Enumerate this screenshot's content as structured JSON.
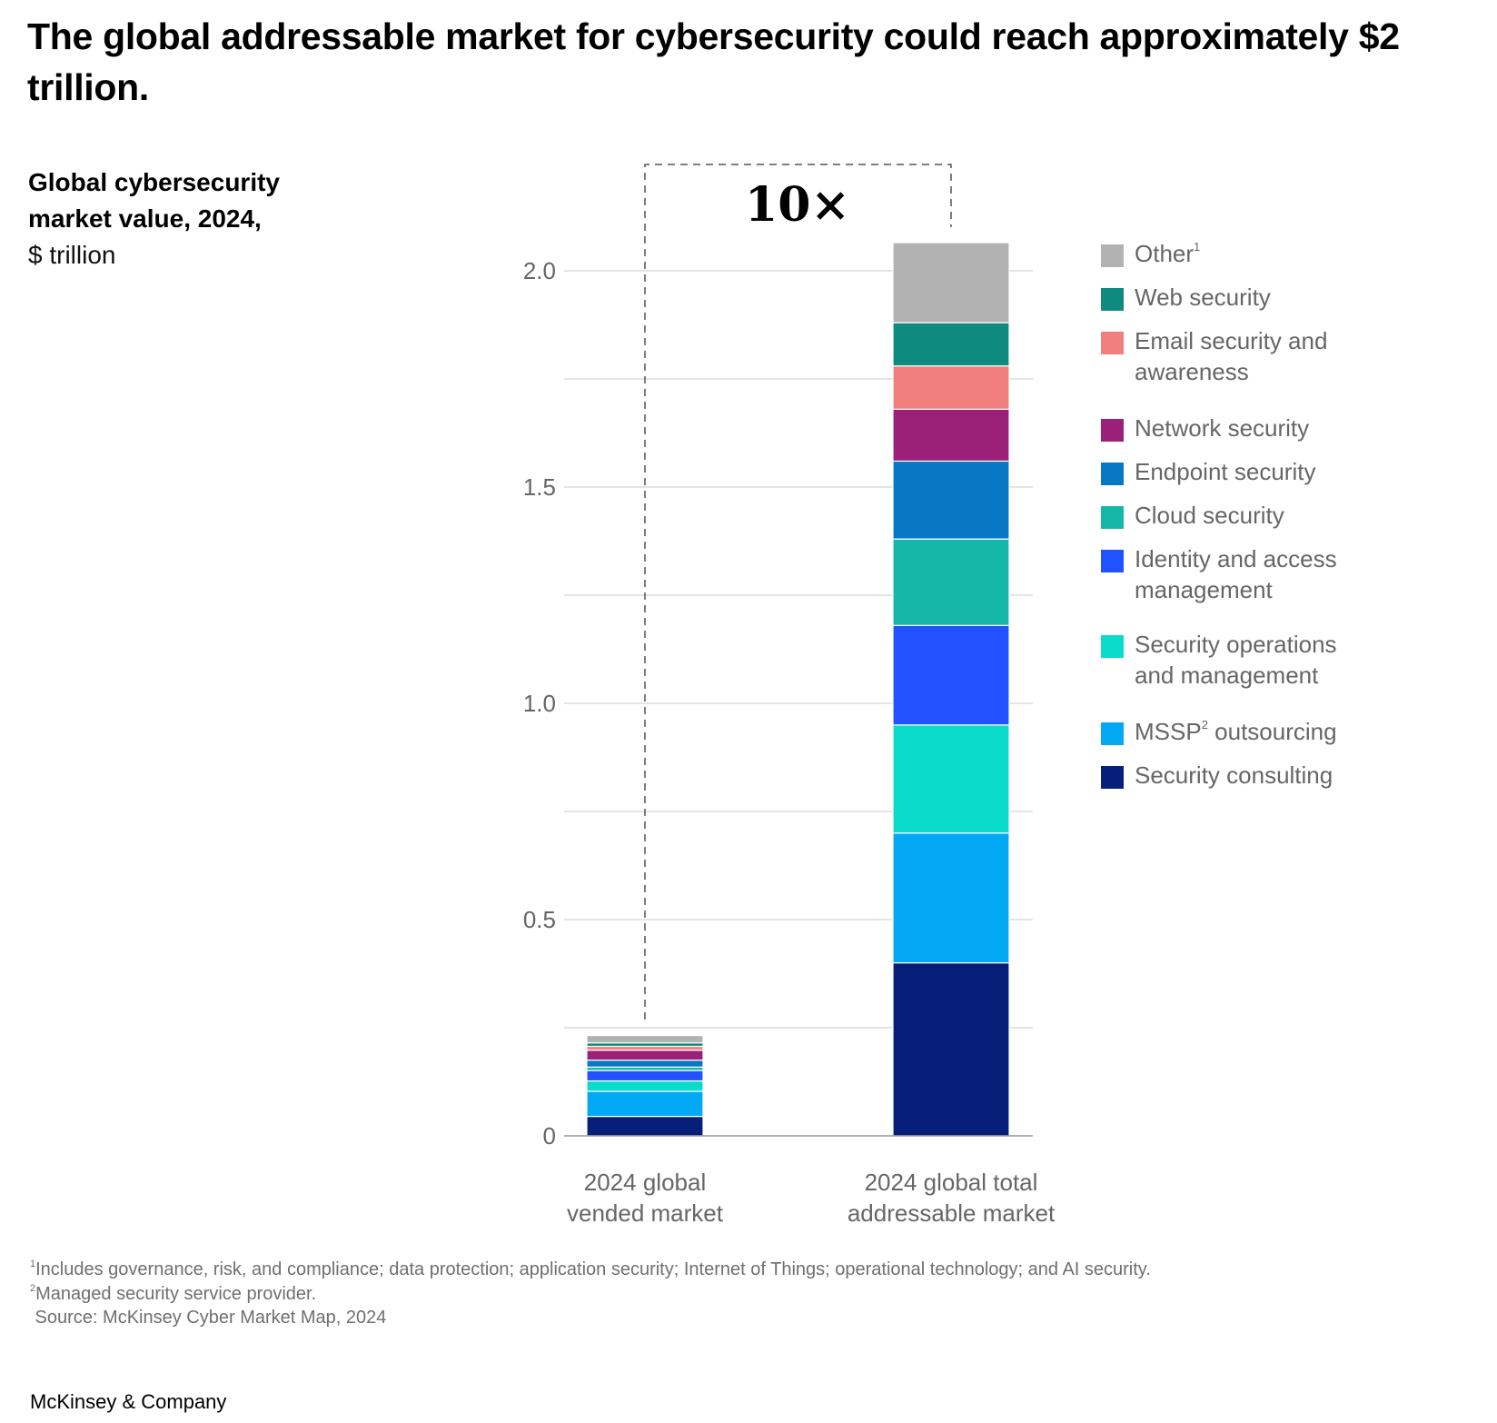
{
  "title": "The global addressable market for cybersecurity could reach approximately $2 trillion.",
  "subtitle": {
    "line1": "Global cybersecurity",
    "line2": "market value, 2024,",
    "unit": "$ trillion"
  },
  "annotation": "10×",
  "legend": [
    {
      "label": "Other",
      "sup": "1",
      "color": "#b2b2b2"
    },
    {
      "label": "Web security",
      "sup": "",
      "color": "#0f8a7e"
    },
    {
      "label": "Email security and awareness",
      "sup": "",
      "color": "#f07f7d"
    },
    {
      "label": "Network security",
      "sup": "",
      "color": "#9b2178"
    },
    {
      "label": "Endpoint security",
      "sup": "",
      "color": "#0878c4"
    },
    {
      "label": "Cloud security",
      "sup": "",
      "color": "#15b8a8"
    },
    {
      "label": "Identity and access management",
      "sup": "",
      "color": "#2251ff"
    },
    {
      "label": "Security operations and management",
      "sup": "",
      "color": "#0adbcb"
    },
    {
      "label": "MSSP",
      "sup": "2",
      "label_suffix": " outsourcing",
      "color": "#03a9f4"
    },
    {
      "label": "Security consulting",
      "sup": "",
      "color": "#061f79"
    }
  ],
  "chart_data": {
    "type": "bar",
    "stacked": true,
    "title": "Global cybersecurity market value, 2024",
    "ylabel": "$ trillion",
    "xlabel": "",
    "ylim": [
      0,
      2.0
    ],
    "yticks": [
      0,
      0.5,
      1.0,
      1.5,
      2.0
    ],
    "ytick_labels": [
      "0",
      "0.5",
      "1.0",
      "1.5",
      "2.0"
    ],
    "grid": true,
    "gridline_step": 0.25,
    "legend_position": "right",
    "categories": [
      "2024 global vended market",
      "2024 global total addressable market"
    ],
    "category_lines": [
      [
        "2024 global",
        "vended market"
      ],
      [
        "2024 global total",
        "addressable market"
      ]
    ],
    "series": [
      {
        "name": "Security consulting",
        "values": [
          0.045,
          0.4
        ]
      },
      {
        "name": "MSSP outsourcing",
        "values": [
          0.058,
          0.3
        ]
      },
      {
        "name": "Security operations and management",
        "values": [
          0.024,
          0.25
        ]
      },
      {
        "name": "Identity and access management",
        "values": [
          0.024,
          0.23
        ]
      },
      {
        "name": "Cloud security",
        "values": [
          0.008,
          0.2
        ]
      },
      {
        "name": "Endpoint security",
        "values": [
          0.016,
          0.18
        ]
      },
      {
        "name": "Network security",
        "values": [
          0.023,
          0.12
        ]
      },
      {
        "name": "Email security and awareness",
        "values": [
          0.009,
          0.1
        ]
      },
      {
        "name": "Web security",
        "values": [
          0.008,
          0.1
        ]
      },
      {
        "name": "Other",
        "values": [
          0.017,
          0.185
        ]
      }
    ],
    "annotations": [
      {
        "text": "10×",
        "between": [
          "2024 global vended market",
          "2024 global total addressable market"
        ]
      }
    ]
  },
  "footnotes": [
    {
      "sup": "1",
      "text": "Includes governance, risk, and compliance; data protection; application security; Internet of Things; operational technology; and AI security."
    },
    {
      "sup": "2",
      "text": "Managed security service provider."
    },
    {
      "sup": "",
      "text": " Source: McKinsey Cyber Market Map, 2024"
    }
  ],
  "logo": "McKinsey & Company"
}
